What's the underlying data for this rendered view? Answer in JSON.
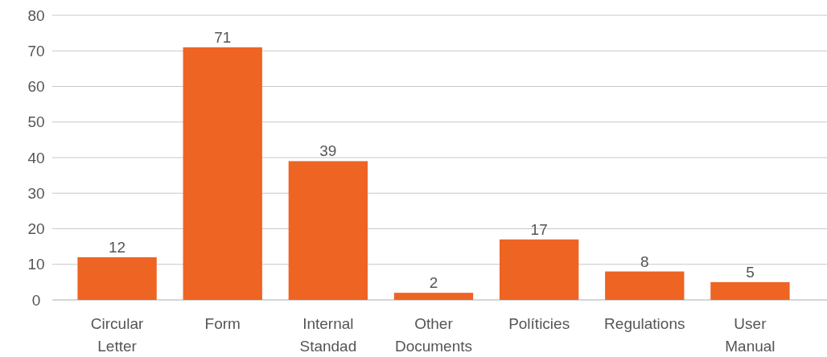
{
  "chart_data": {
    "type": "bar",
    "categories": [
      "Circular Letter",
      "Form",
      "Internal Standad",
      "Other Documents",
      "Políticies",
      "Regulations",
      "User Manual"
    ],
    "values": [
      12,
      71,
      39,
      2,
      17,
      8,
      5
    ],
    "color": "#ee6423",
    "ylim": [
      0,
      80
    ],
    "yticks": [
      0,
      10,
      20,
      30,
      40,
      50,
      60,
      70,
      80
    ],
    "grid": "y",
    "data_labels": true
  }
}
